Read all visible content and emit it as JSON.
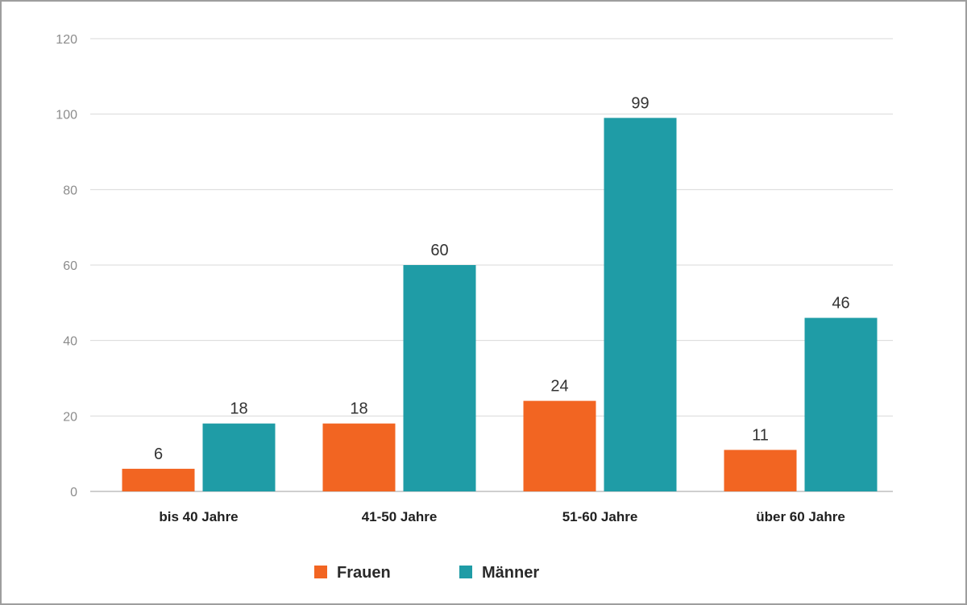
{
  "chart_data": {
    "type": "bar",
    "categories": [
      "bis 40 Jahre",
      "41-50 Jahre",
      "51-60 Jahre",
      "über 60 Jahre"
    ],
    "series": [
      {
        "name": "Frauen",
        "color": "#f26522",
        "values": [
          6,
          18,
          24,
          11
        ]
      },
      {
        "name": "Männer",
        "color": "#1f9ca6",
        "values": [
          18,
          60,
          99,
          46
        ]
      }
    ],
    "ylim": [
      0,
      120
    ],
    "yticks": [
      "0",
      "20",
      "40",
      "60",
      "80",
      "100",
      "120"
    ],
    "grid": true,
    "legend_position": "bottom",
    "title": "",
    "xlabel": "",
    "ylabel": ""
  }
}
